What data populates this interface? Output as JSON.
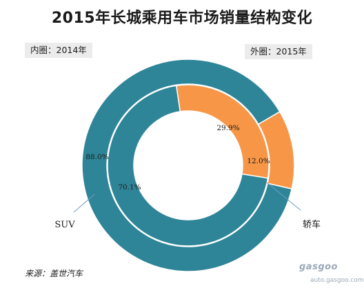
{
  "title": "2015年长城乘用车市场销量结构变化",
  "inner_ring_label": "内圈：2014年",
  "outer_ring_label": "外圈：2015年",
  "source": "来源：盖世汽车",
  "watermark": {
    "logo": "gasgoo",
    "url": "auto.gasgoo.com"
  },
  "colors": {
    "suv": "#2f8598",
    "sedan": "#f79646",
    "separator": "#ffffff",
    "leader_line": "#6f9bc8"
  },
  "chart_data": {
    "type": "pie",
    "subtype": "double-ring donut",
    "categories": [
      "SUV",
      "轿车"
    ],
    "series": [
      {
        "year": "2014年",
        "ring": "inner",
        "values": [
          70.1,
          29.9
        ],
        "labels": [
          "70.1%",
          "29.9%"
        ]
      },
      {
        "year": "2015年",
        "ring": "outer",
        "values": [
          88.0,
          12.0
        ],
        "labels": [
          "88.0%",
          "12.0%"
        ]
      }
    ],
    "unit": "%",
    "legend": "none (category labels with leader lines)"
  }
}
